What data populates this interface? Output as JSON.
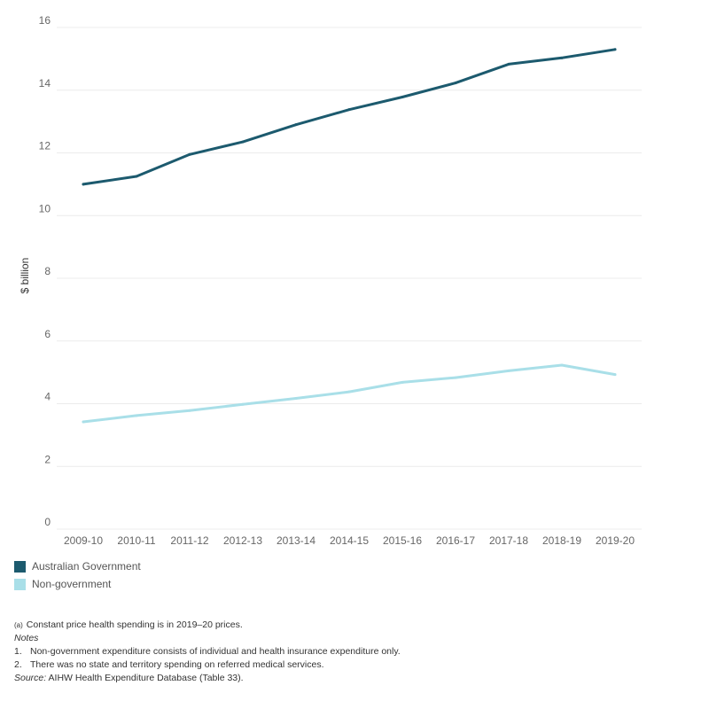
{
  "chart_data": {
    "type": "line",
    "categories": [
      "2009-10",
      "2010-11",
      "2011-12",
      "2012-13",
      "2013-14",
      "2014-15",
      "2015-16",
      "2016-17",
      "2017-18",
      "2018-19",
      "2019-20"
    ],
    "ylabel": "$ billion",
    "ylim": [
      0,
      16
    ],
    "yticks": [
      0,
      2,
      4,
      6,
      8,
      10,
      12,
      14,
      16
    ],
    "grid": true,
    "legend_position": "bottom-left",
    "series": [
      {
        "name": "Australian Government",
        "color": "#1c5a6e",
        "values": [
          11.0,
          11.25,
          11.95,
          12.35,
          12.9,
          13.38,
          13.78,
          14.23,
          14.83,
          15.03,
          15.3
        ]
      },
      {
        "name": "Non-government",
        "color": "#a9dfe8",
        "values": [
          3.42,
          3.62,
          3.78,
          3.98,
          4.17,
          4.38,
          4.68,
          4.83,
          5.05,
          5.23,
          4.93
        ]
      }
    ]
  },
  "notes": {
    "footnote_marker": "(a)",
    "footnote": "Constant price health spending is in 2019–20 prices.",
    "notes_heading": "Notes",
    "items": [
      {
        "num": "1.",
        "text": "Non-government expenditure consists of individual and health insurance expenditure only."
      },
      {
        "num": "2.",
        "text": "There was no state and territory spending on referred medical services."
      }
    ],
    "source_label": "Source:",
    "source_text": " AIHW Health Expenditure Database (Table 33)."
  }
}
